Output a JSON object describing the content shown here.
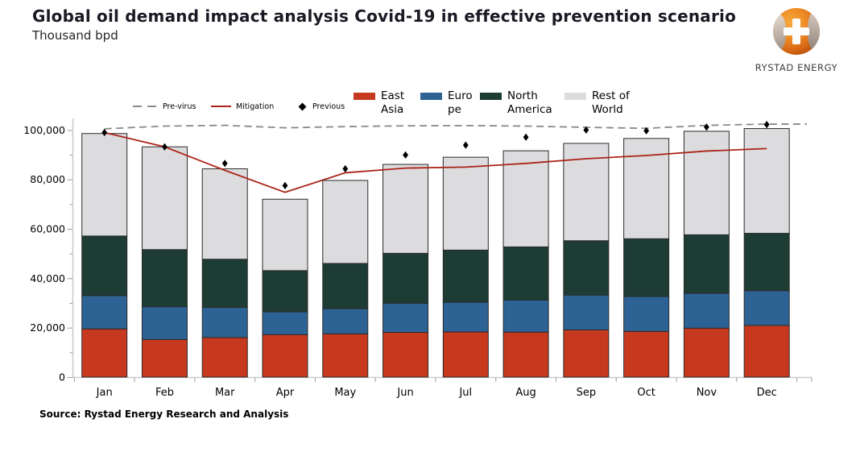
{
  "header": {
    "title": "Global oil demand impact analysis Covid-19 in effective prevention scenario",
    "subtitle": "Thousand bpd"
  },
  "logo": {
    "brand": "RYSTAD ENERGY",
    "icon": "globe-icon"
  },
  "footer": {
    "source": "Source: Rystad Energy Research and Analysis"
  },
  "chart_data": {
    "type": "bar",
    "stacked": true,
    "title": "Global oil demand impact analysis Covid-19 in effective prevention scenario",
    "ylabel": "Thousand bpd",
    "xlabel": "",
    "grid": false,
    "legend_position": "top",
    "categories": [
      "Jan",
      "Feb",
      "Mar",
      "Apr",
      "May",
      "Jun",
      "Jul",
      "Aug",
      "Sep",
      "Oct",
      "Nov",
      "Dec"
    ],
    "series": [
      {
        "name": "East Asia",
        "kind": "bar",
        "color": "#c7391f",
        "values": [
          19500,
          15200,
          16000,
          17200,
          17500,
          18100,
          18300,
          18200,
          19100,
          18500,
          19800,
          20900
        ]
      },
      {
        "name": "Europe",
        "kind": "bar",
        "color": "#2d6394",
        "values": [
          13500,
          13300,
          12200,
          9200,
          10200,
          11800,
          12000,
          13000,
          14100,
          14100,
          14100,
          14100
        ]
      },
      {
        "name": "North America",
        "kind": "bar",
        "color": "#1d3c34",
        "values": [
          24100,
          23100,
          19500,
          16700,
          18300,
          20200,
          21100,
          21500,
          22000,
          23400,
          23700,
          23200
        ]
      },
      {
        "name": "Rest of World",
        "kind": "bar",
        "color": "#dcdcde",
        "values": [
          41500,
          41600,
          36600,
          28900,
          33600,
          36000,
          37600,
          38900,
          39400,
          40600,
          41900,
          42400
        ]
      },
      {
        "name": "Pre-virus",
        "kind": "line",
        "style": "dashed",
        "color": "#8a8a8a",
        "values": [
          100500,
          101600,
          101900,
          100900,
          101400,
          101700,
          101800,
          101600,
          101100,
          100700,
          101900,
          102400
        ]
      },
      {
        "name": "Mitigation",
        "kind": "line",
        "style": "solid",
        "color": "#ab2419",
        "values": [
          99000,
          93200,
          83700,
          74800,
          82700,
          84600,
          85000,
          86500,
          88400,
          89700,
          91500,
          92500
        ]
      },
      {
        "name": "Previous",
        "kind": "scatter",
        "marker": "diamond",
        "color": "#000000",
        "values": [
          99000,
          93200,
          86500,
          77500,
          84300,
          89900,
          93900,
          97100,
          100000,
          99700,
          101200,
          102200
        ]
      }
    ],
    "bar_totals": [
      98600,
      93200,
      84300,
      72000,
      79600,
      86100,
      89000,
      91600,
      94600,
      96600,
      99500,
      100600
    ],
    "ylim": [
      0,
      105000
    ],
    "yticks": [
      {
        "value": 0,
        "label": "0"
      },
      {
        "value": 20000,
        "label": "20,000"
      },
      {
        "value": 40000,
        "label": "40,000"
      },
      {
        "value": 60000,
        "label": "60,000"
      },
      {
        "value": 80000,
        "label": "80,000"
      },
      {
        "value": 100000,
        "label": "100,000"
      }
    ],
    "minor_tick_interval": 10000
  }
}
